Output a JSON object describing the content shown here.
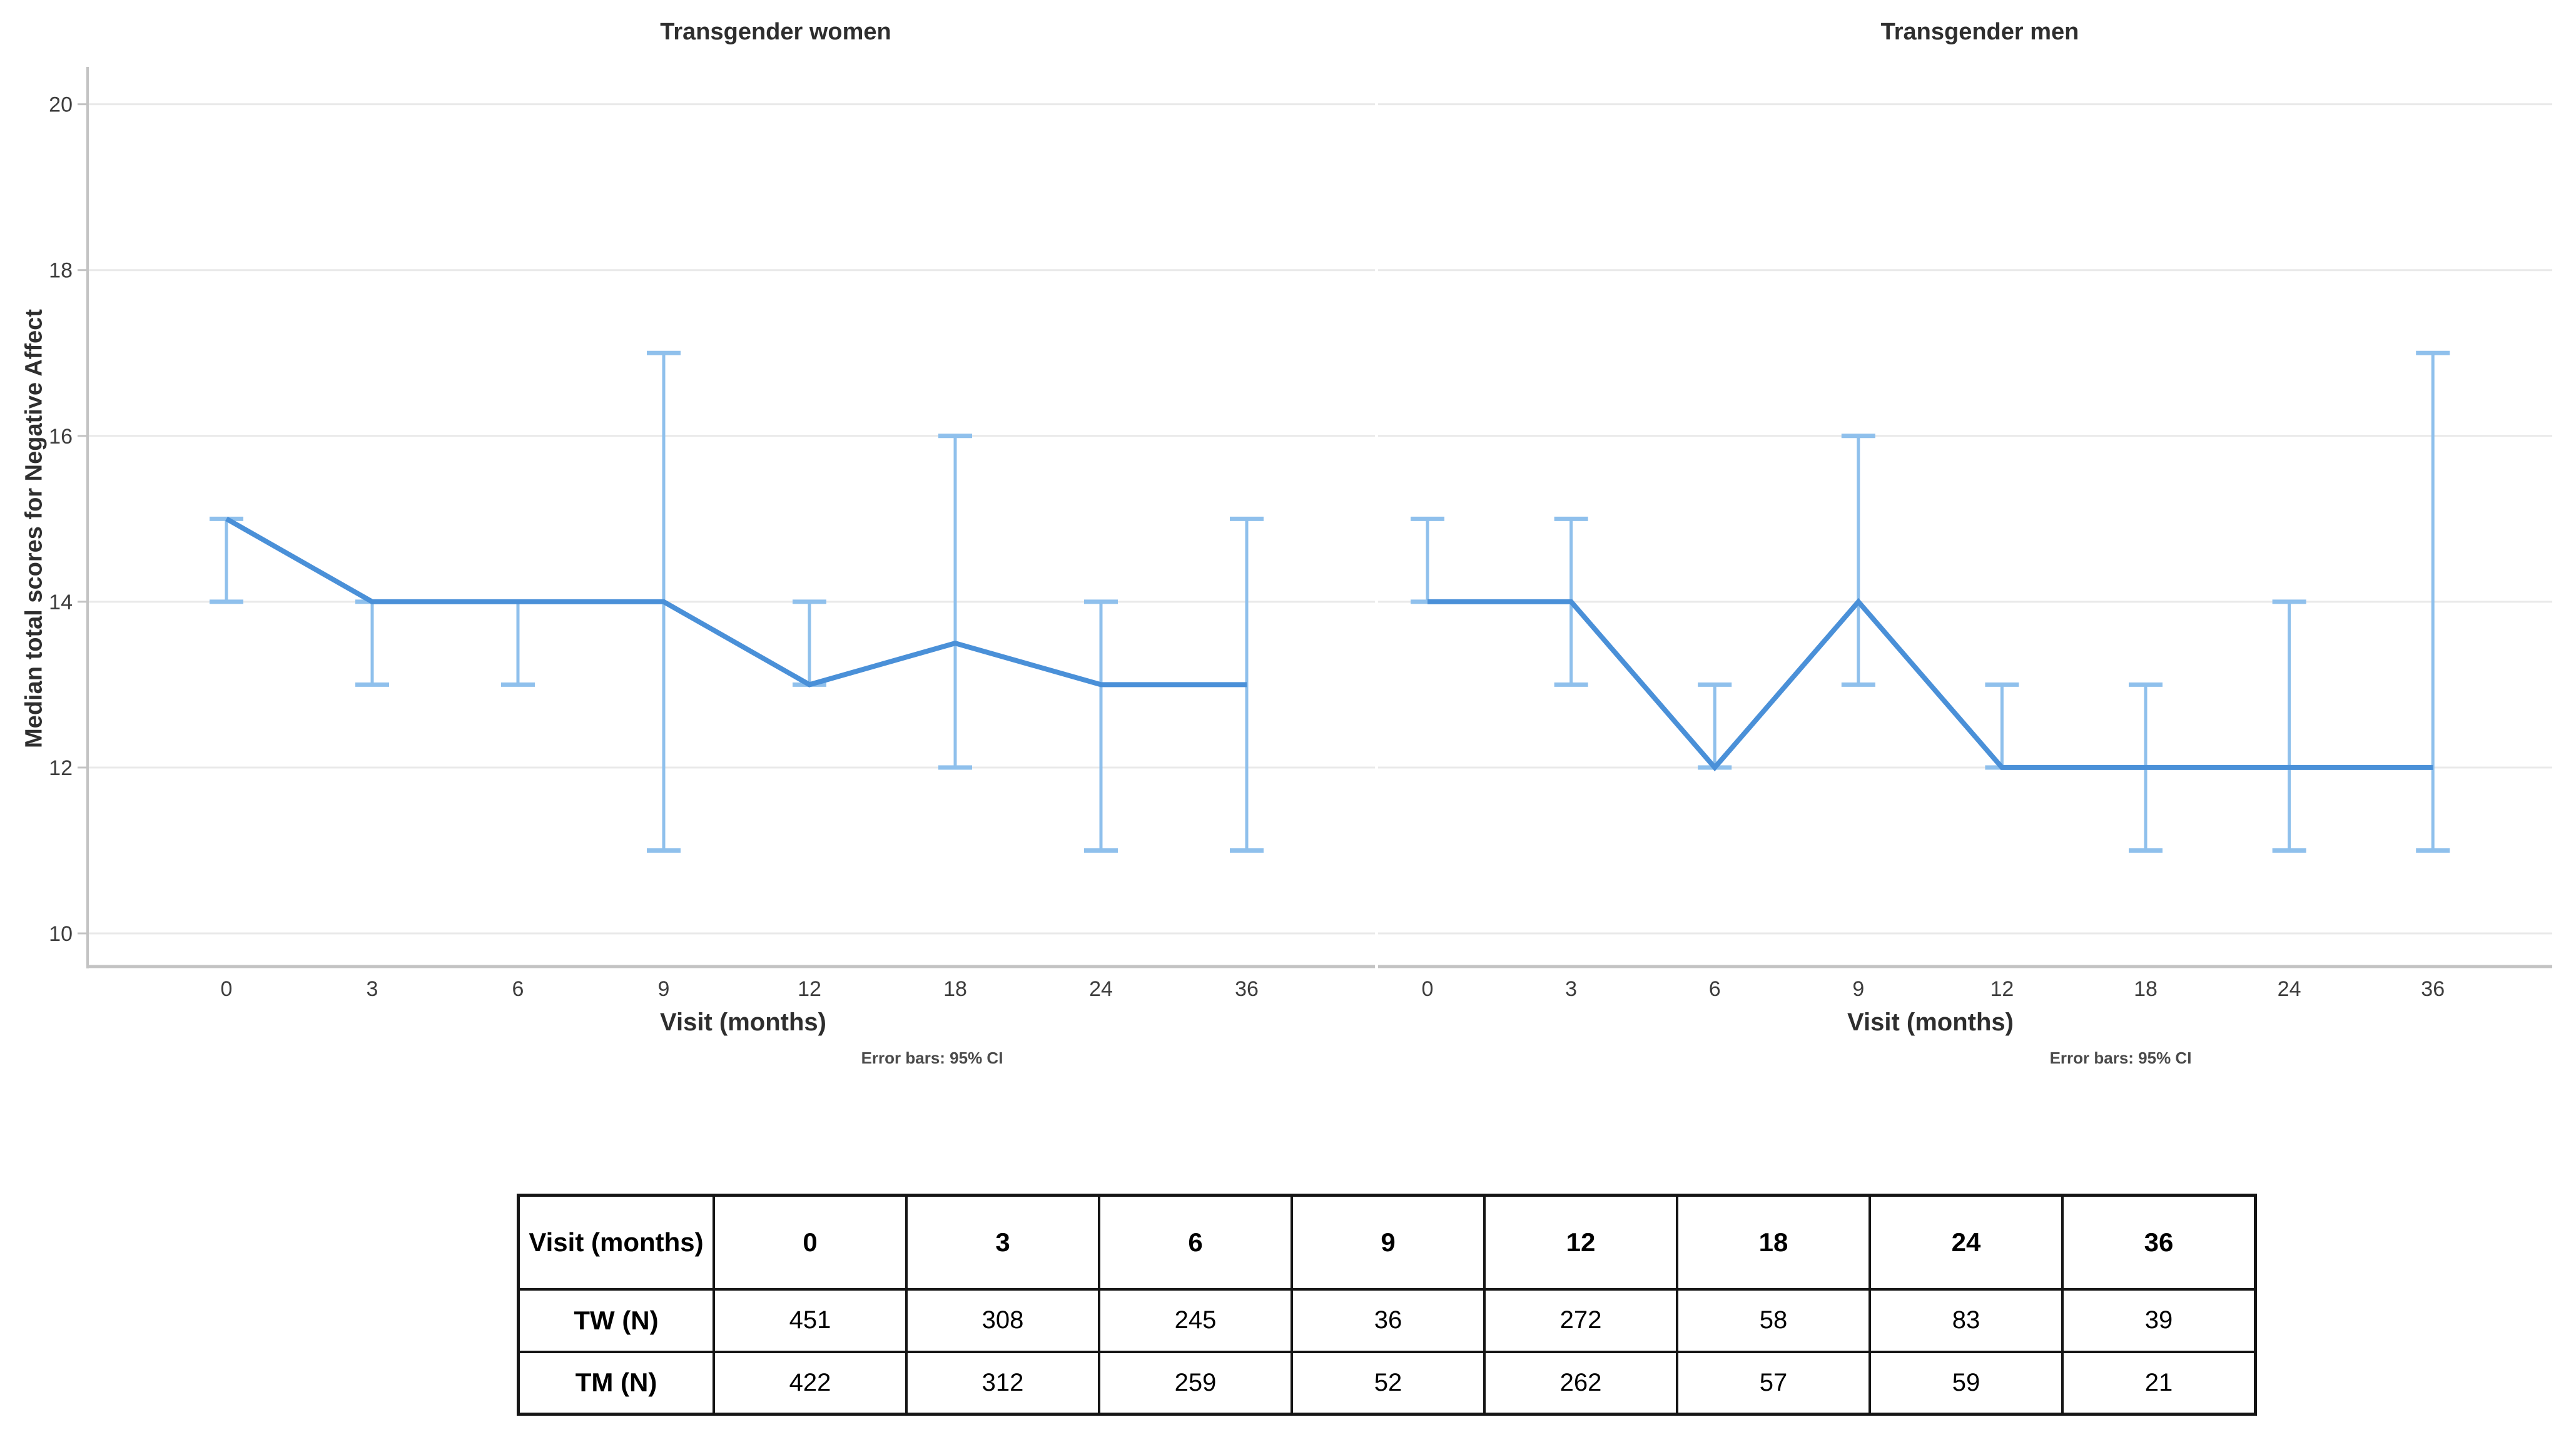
{
  "figure": {
    "ylabel": "Median total scores for Negative Affect",
    "panels": [
      {
        "title": "Transgender women",
        "xlabel": "Visit (months)",
        "footnote": "Error bars: 95% CI"
      },
      {
        "title": "Transgender men",
        "xlabel": "Visit (months)",
        "footnote": "Error bars: 95% CI"
      }
    ]
  },
  "chart_data": {
    "type": "line",
    "categories": [
      "0",
      "3",
      "6",
      "9",
      "12",
      "18",
      "24",
      "36"
    ],
    "xlabel": "Visit (months)",
    "ylabel": "Median total scores for Negative Affect",
    "y_ticks": [
      10,
      12,
      14,
      16,
      18,
      20
    ],
    "ylim": [
      9.6,
      20.45
    ],
    "grid": "horizontal-major",
    "legend": "none",
    "footnote": "Error bars: 95% CI",
    "panels": [
      "Transgender women",
      "Transgender men"
    ],
    "series": [
      {
        "name": "Transgender women median",
        "panel": 0,
        "values": [
          15,
          14,
          14,
          14,
          13,
          13.5,
          13,
          13
        ],
        "ci_low": [
          14,
          13,
          13,
          11,
          13,
          12,
          11,
          11
        ],
        "ci_high": [
          15,
          14,
          14,
          17,
          14,
          16,
          14,
          15
        ]
      },
      {
        "name": "Transgender men median",
        "panel": 1,
        "values": [
          14,
          14,
          12,
          14,
          12,
          12,
          12,
          12
        ],
        "ci_low": [
          14,
          13,
          12,
          13,
          12,
          11,
          11,
          11
        ],
        "ci_high": [
          15,
          15,
          13,
          16,
          13,
          13,
          14,
          17
        ]
      }
    ],
    "colors": {
      "line": "#4a90d8",
      "error_bar": "#8fc0ec",
      "gridline": "#e9e9e9",
      "axis": "#c3c3c3",
      "tick_text": "#3d3d3d"
    }
  },
  "table": {
    "corner_header": "Visit (months)",
    "column_headers": [
      "0",
      "3",
      "6",
      "9",
      "12",
      "18",
      "24",
      "36"
    ],
    "rows": [
      {
        "label": "TW (N)",
        "values": [
          "451",
          "308",
          "245",
          "36",
          "272",
          "58",
          "83",
          "39"
        ]
      },
      {
        "label": "TM (N)",
        "values": [
          "422",
          "312",
          "259",
          "52",
          "262",
          "57",
          "59",
          "21"
        ]
      }
    ]
  }
}
